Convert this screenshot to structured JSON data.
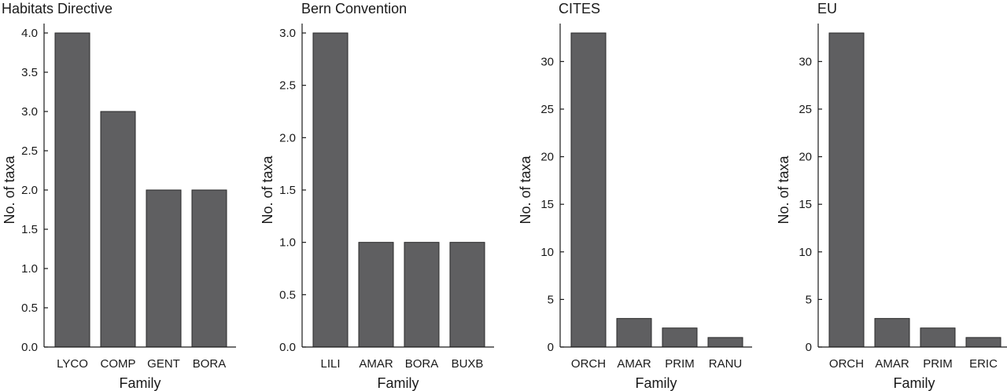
{
  "chart_data": [
    {
      "type": "bar",
      "title": "Habitats Directive",
      "xlabel": "Family",
      "ylabel": "No. of taxa",
      "categories": [
        "LYCO",
        "COMP",
        "GENT",
        "BORA"
      ],
      "values": [
        4,
        3,
        2,
        2
      ],
      "ylim": [
        0,
        4
      ],
      "yticks": [
        "0.0",
        "0.5",
        "1.0",
        "1.5",
        "2.0",
        "2.5",
        "3.0",
        "3.5",
        "4.0"
      ],
      "ytick_values": [
        0,
        0.5,
        1,
        1.5,
        2,
        2.5,
        3,
        3.5,
        4
      ]
    },
    {
      "type": "bar",
      "title": "Bern Convention",
      "xlabel": "Family",
      "ylabel": "No. of taxa",
      "categories": [
        "LILI",
        "AMAR",
        "BORA",
        "BUXB"
      ],
      "values": [
        3,
        1,
        1,
        1
      ],
      "ylim": [
        0,
        3
      ],
      "yticks": [
        "0.0",
        "0.5",
        "1.0",
        "1.5",
        "2.0",
        "2.5",
        "3.0"
      ],
      "ytick_values": [
        0,
        0.5,
        1,
        1.5,
        2,
        2.5,
        3
      ]
    },
    {
      "type": "bar",
      "title": "CITES",
      "xlabel": "Family",
      "ylabel": "No. of taxa",
      "categories": [
        "ORCH",
        "AMAR",
        "PRIM",
        "RANU"
      ],
      "values": [
        33,
        3,
        2,
        1
      ],
      "ylim": [
        0,
        33
      ],
      "yticks": [
        "0",
        "5",
        "10",
        "15",
        "20",
        "25",
        "30"
      ],
      "ytick_values": [
        0,
        5,
        10,
        15,
        20,
        25,
        30
      ]
    },
    {
      "type": "bar",
      "title": "EU",
      "xlabel": "Family",
      "ylabel": "No. of taxa",
      "categories": [
        "ORCH",
        "AMAR",
        "PRIM",
        "ERIC"
      ],
      "values": [
        33,
        3,
        2,
        1
      ],
      "ylim": [
        0,
        33
      ],
      "yticks": [
        "0",
        "5",
        "10",
        "15",
        "20",
        "25",
        "30"
      ],
      "ytick_values": [
        0,
        5,
        10,
        15,
        20,
        25,
        30
      ]
    }
  ]
}
